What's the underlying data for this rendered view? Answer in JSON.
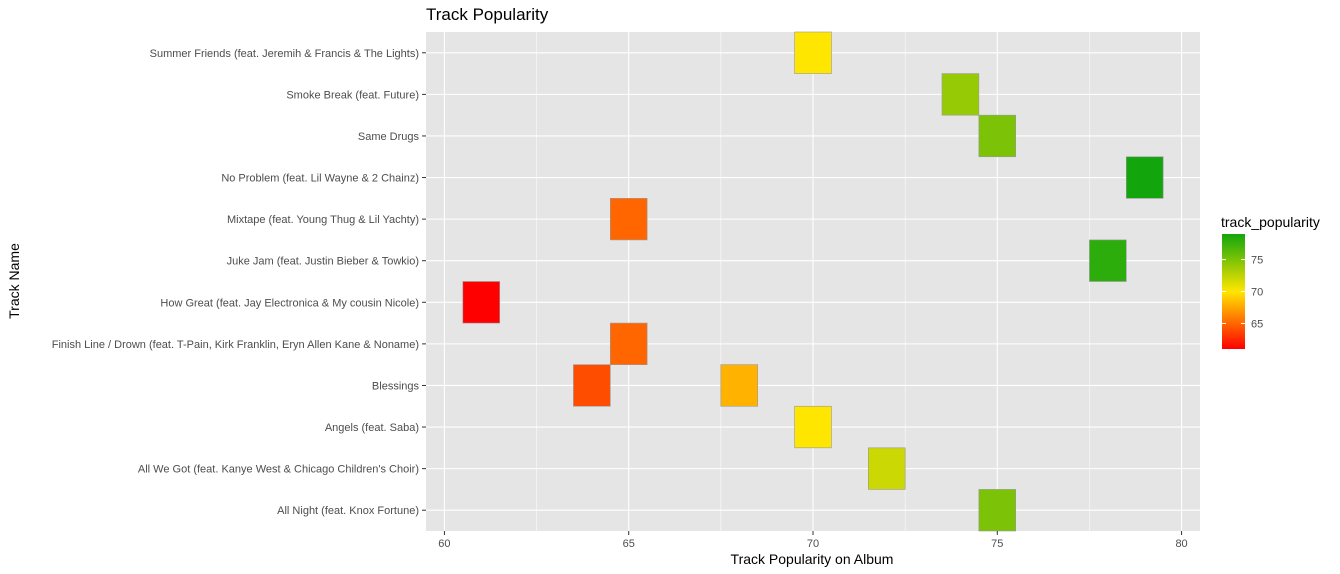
{
  "chart_data": {
    "type": "heatmap",
    "title": "Track Popularity",
    "xlabel": "Track Popularity on Album",
    "ylabel": "Track Name",
    "xlim": [
      59.5,
      80.5
    ],
    "xticks": [
      60,
      65,
      70,
      75,
      80
    ],
    "grid": true,
    "categories": [
      "All Night (feat. Knox Fortune)",
      "All We Got (feat. Kanye West & Chicago Children's Choir)",
      "Angels (feat. Saba)",
      "Blessings",
      "Finish Line / Drown (feat. T-Pain, Kirk Franklin, Eryn Allen Kane & Noname)",
      "How Great (feat. Jay Electronica & My cousin Nicole)",
      "Juke Jam (feat. Justin Bieber & Towkio)",
      "Mixtape (feat. Young Thug & Lil Yachty)",
      "No Problem (feat. Lil Wayne & 2 Chainz)",
      "Same Drugs",
      "Smoke Break (feat. Future)",
      "Summer Friends (feat. Jeremih & Francis & The Lights)"
    ],
    "points": [
      {
        "track": "All Night (feat. Knox Fortune)",
        "x": 75,
        "track_popularity": 75
      },
      {
        "track": "All We Got (feat. Kanye West & Chicago Children's Choir)",
        "x": 72,
        "track_popularity": 72
      },
      {
        "track": "Angels (feat. Saba)",
        "x": 70,
        "track_popularity": 70
      },
      {
        "track": "Blessings",
        "x": 64,
        "track_popularity": 64
      },
      {
        "track": "Blessings",
        "x": 68,
        "track_popularity": 68
      },
      {
        "track": "Finish Line / Drown (feat. T-Pain, Kirk Franklin, Eryn Allen Kane & Noname)",
        "x": 65,
        "track_popularity": 65
      },
      {
        "track": "How Great (feat. Jay Electronica & My cousin Nicole)",
        "x": 61,
        "track_popularity": 61
      },
      {
        "track": "Juke Jam (feat. Justin Bieber & Towkio)",
        "x": 78,
        "track_popularity": 78
      },
      {
        "track": "Mixtape (feat. Young Thug & Lil Yachty)",
        "x": 65,
        "track_popularity": 65
      },
      {
        "track": "No Problem (feat. Lil Wayne & 2 Chainz)",
        "x": 79,
        "track_popularity": 79
      },
      {
        "track": "Same Drugs",
        "x": 75,
        "track_popularity": 75
      },
      {
        "track": "Smoke Break (feat. Future)",
        "x": 74,
        "track_popularity": 74
      },
      {
        "track": "Summer Friends (feat. Jeremih & Francis & The Lights)",
        "x": 70,
        "track_popularity": 70
      }
    ],
    "legend": {
      "title": "track_popularity",
      "placement": "right",
      "min": 61,
      "max": 79,
      "breaks": [
        65,
        70,
        75
      ],
      "colors": {
        "low": "#ff0000",
        "mid": "#ffe600",
        "high": "#13a60c"
      },
      "mid_value": 70
    },
    "style": {
      "panel_background": "#e5e5e5",
      "grid_color": "#ffffff",
      "tile_border": "#999999"
    }
  }
}
